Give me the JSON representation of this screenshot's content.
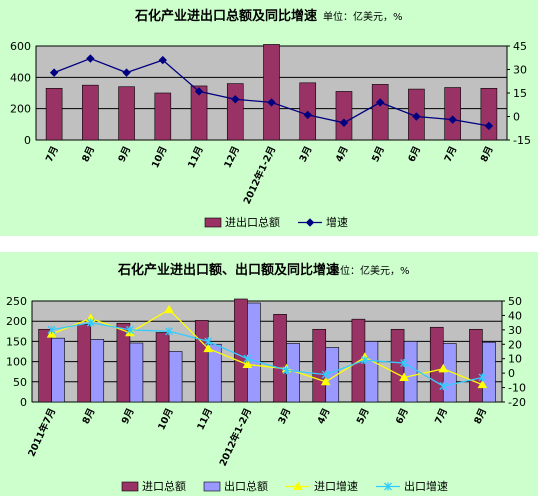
{
  "chart_data": [
    {
      "type": "bar",
      "title": "石化产业进出口总额及同比增速",
      "unit": "单位：亿美元，%",
      "categories": [
        "7月",
        "8月",
        "9月",
        "10月",
        "11月",
        "12月",
        "2012年1-2月",
        "3月",
        "4月",
        "5月",
        "6月",
        "7月",
        "8月"
      ],
      "series": [
        {
          "name": "进出口总额",
          "kind": "bar",
          "axis": "left",
          "color": "#993366",
          "values": [
            330,
            350,
            340,
            300,
            345,
            360,
            610,
            365,
            310,
            355,
            325,
            335,
            330
          ]
        },
        {
          "name": "增速",
          "kind": "line",
          "axis": "right",
          "color": "#000080",
          "marker": "diamond",
          "values": [
            28,
            37,
            28,
            36,
            16,
            11,
            9,
            1,
            -4,
            9,
            0,
            -2,
            -6
          ]
        }
      ],
      "ylim": [
        0,
        600
      ],
      "yticks": [
        0,
        200,
        400,
        600
      ],
      "y2lim": [
        -15,
        45
      ],
      "y2ticks": [
        -15,
        0,
        15,
        30,
        45
      ],
      "grid": true,
      "legend": "bottom"
    },
    {
      "type": "bar",
      "title": "石化产业进出口额、出口额及同比增速",
      "unit": "单位：亿美元，%",
      "categories": [
        "2011年7月",
        "8月",
        "9月",
        "10月",
        "11月",
        "2012年1-2月",
        "3月",
        "4月",
        "5月",
        "6月",
        "7月",
        "8月"
      ],
      "series": [
        {
          "name": "进口总额",
          "kind": "bar",
          "axis": "left",
          "color": "#993366",
          "values": [
            180,
            192,
            195,
            172,
            202,
            255,
            217,
            180,
            205,
            180,
            185,
            180
          ]
        },
        {
          "name": "出口总额",
          "kind": "bar",
          "axis": "left",
          "color": "#9999ff",
          "values": [
            158,
            155,
            146,
            125,
            143,
            245,
            145,
            135,
            150,
            150,
            145,
            148
          ]
        },
        {
          "name": "进口增速",
          "kind": "line",
          "axis": "right",
          "color": "#ffff00",
          "marker": "triangle",
          "values": [
            27,
            38,
            28,
            44,
            17,
            6,
            3,
            -6,
            11,
            -3,
            3,
            -8
          ]
        },
        {
          "name": "出口增速",
          "kind": "line",
          "axis": "right",
          "color": "#33ccff",
          "marker": "star",
          "values": [
            30,
            35,
            30,
            29,
            22,
            10,
            2,
            -1,
            9,
            7,
            -9,
            -3
          ]
        }
      ],
      "ylim": [
        0,
        250
      ],
      "yticks": [
        0,
        50,
        100,
        150,
        200,
        250
      ],
      "y2lim": [
        -20,
        50
      ],
      "y2ticks": [
        -20,
        -10,
        0,
        10,
        20,
        30,
        40,
        50
      ],
      "grid": true,
      "legend": "bottom"
    }
  ]
}
